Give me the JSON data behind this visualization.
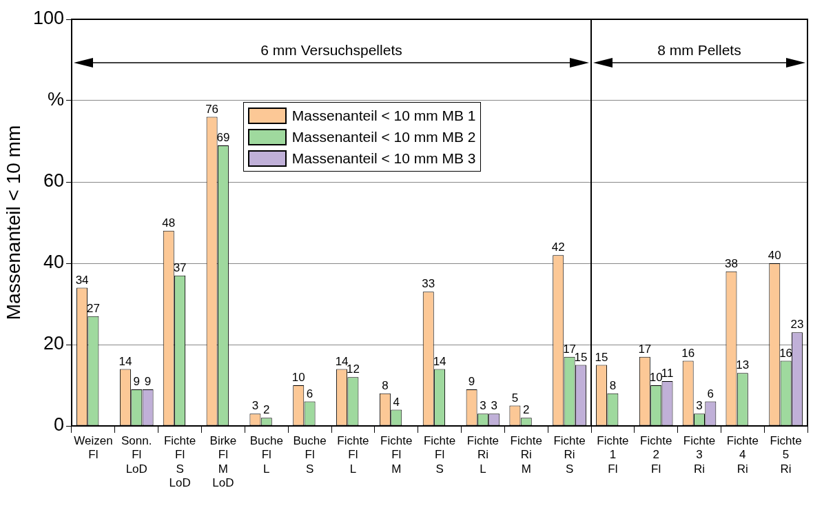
{
  "chart_data": [
    {
      "type": "bar",
      "ylabel": "Massenanteil < 10 mm",
      "categories": [
        "Weizen\nFl",
        "Sonn.\nFl\nLoD",
        "Fichte\nFl\nS\nLoD",
        "Birke\nFl\nM\nLoD",
        "Buche\nFl\nL",
        "Buche\nFl\nS",
        "Fichte\nFl\nL",
        "Fichte\nFl\nM",
        "Fichte\nFl\nS",
        "Fichte\nRi\nL",
        "Fichte\nRi\nM",
        "Fichte\nRi\nS"
      ],
      "series": [
        {
          "name": "Massenanteil < 10 mm MB 1",
          "color": "#fcc896",
          "values": [
            34,
            14,
            48,
            76,
            3,
            10,
            14,
            8,
            33,
            9,
            5,
            42
          ]
        },
        {
          "name": "Massenanteil < 10 mm MB 2",
          "color": "#9fd99e",
          "values": [
            27,
            9,
            37,
            69,
            2,
            6,
            12,
            4,
            14,
            3,
            2,
            17
          ]
        },
        {
          "name": "Massenanteil < 10 mm MB 3",
          "color": "#c0b0d8",
          "values": [
            null,
            9,
            null,
            null,
            null,
            null,
            null,
            null,
            null,
            3,
            null,
            15
          ]
        }
      ],
      "ylim": [
        0,
        100
      ],
      "yticks": [
        0,
        20,
        40,
        60,
        {
          "value": 80,
          "label": "%"
        },
        100
      ],
      "grid": "y",
      "legend": "top",
      "data_labels": true,
      "annotations": [
        "6 mm Versuchspellets"
      ]
    },
    {
      "type": "bar",
      "categories": [
        "Fichte\n1\nFl",
        "Fichte\n2\nFl",
        "Fichte\n3\nRi",
        "Fichte\n4\nRi",
        "Fichte\n5\nRi"
      ],
      "series": [
        {
          "color": "#fcc896",
          "values": [
            15,
            17,
            16,
            38,
            40
          ]
        },
        {
          "color": "#9fd99e",
          "values": [
            8,
            10,
            3,
            13,
            16
          ]
        },
        {
          "color": "#c0b0d8",
          "values": [
            null,
            11,
            6,
            null,
            23
          ]
        }
      ],
      "ylim": [
        0,
        100
      ],
      "grid": "y",
      "tick_labels": "x",
      "data_labels": true,
      "yticks": [
        0,
        20,
        40,
        60,
        80,
        100
      ],
      "annotations": [
        "8 mm Pellets"
      ]
    }
  ]
}
